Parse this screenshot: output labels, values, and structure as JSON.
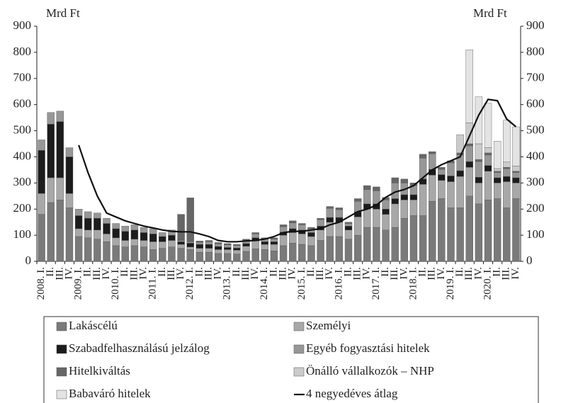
{
  "chart_data": {
    "type": "bar",
    "stacked": true,
    "y_unit": "Mrd Ft",
    "y2_unit": "Mrd Ft",
    "categories": [
      "2008. I.",
      "II.",
      "III.",
      "IV.",
      "2009. I.",
      "II.",
      "III.",
      "IV.",
      "2010. I.",
      "II.",
      "III.",
      "IV.",
      "2011. I.",
      "II.",
      "III.",
      "IV.",
      "2012. I.",
      "II.",
      "III.",
      "IV.",
      "2013. I.",
      "II.",
      "III.",
      "IV.",
      "2014. I.",
      "II.",
      "III.",
      "IV.",
      "2015. I.",
      "II.",
      "III.",
      "IV.",
      "2016. I.",
      "II.",
      "III.",
      "IV.",
      "2017. I.",
      "II.",
      "III.",
      "IV.",
      "2018. I.",
      "II.",
      "III.",
      "IV.",
      "2019. I.",
      "II.",
      "III.",
      "IV.",
      "2020. I.",
      "II.",
      "III.",
      "IV."
    ],
    "ylim": [
      0,
      900
    ],
    "yticks": [
      0,
      100,
      200,
      300,
      400,
      500,
      600,
      700,
      800,
      900
    ],
    "y2lim": [
      0,
      900
    ],
    "y2ticks": [
      0,
      100,
      200,
      300,
      400,
      500,
      600,
      700,
      800,
      900
    ],
    "series": [
      {
        "name": "Lakáscélú",
        "color": "#7a7a7a",
        "values": [
          180,
          225,
          235,
          205,
          95,
          90,
          85,
          75,
          60,
          55,
          60,
          55,
          45,
          50,
          55,
          50,
          45,
          35,
          35,
          30,
          30,
          28,
          38,
          48,
          45,
          40,
          60,
          70,
          65,
          60,
          80,
          95,
          95,
          85,
          100,
          130,
          130,
          120,
          130,
          165,
          175,
          175,
          230,
          240,
          205,
          205,
          250,
          220,
          235,
          240,
          205,
          240
        ]
      },
      {
        "name": "Személyi",
        "color": "#a8a8a8",
        "values": [
          80,
          95,
          85,
          55,
          30,
          30,
          35,
          30,
          30,
          25,
          25,
          25,
          30,
          25,
          25,
          15,
          10,
          15,
          15,
          15,
          15,
          15,
          20,
          30,
          20,
          25,
          40,
          40,
          40,
          35,
          40,
          55,
          55,
          35,
          70,
          70,
          70,
          60,
          90,
          70,
          60,
          120,
          100,
          70,
          100,
          120,
          110,
          80,
          110,
          60,
          100,
          60
        ]
      },
      {
        "name": "Szabadfelhasználású jelzálog",
        "color": "#1c1c1c",
        "values": [
          165,
          205,
          215,
          140,
          50,
          45,
          45,
          40,
          35,
          35,
          35,
          30,
          30,
          20,
          20,
          10,
          15,
          15,
          15,
          12,
          8,
          8,
          10,
          12,
          10,
          10,
          12,
          15,
          15,
          15,
          15,
          18,
          18,
          15,
          20,
          20,
          20,
          20,
          20,
          20,
          20,
          20,
          22,
          22,
          22,
          22,
          22,
          22,
          22,
          20,
          20,
          20
        ]
      },
      {
        "name": "Egyéb fogyasztási hitelek",
        "color": "#979797",
        "values": [
          40,
          45,
          40,
          35,
          25,
          25,
          20,
          20,
          20,
          20,
          20,
          20,
          20,
          15,
          20,
          5,
          5,
          8,
          10,
          10,
          10,
          10,
          12,
          15,
          10,
          10,
          20,
          22,
          20,
          15,
          25,
          35,
          30,
          10,
          40,
          55,
          50,
          35,
          60,
          45,
          35,
          80,
          60,
          20,
          50,
          60,
          60,
          60,
          40,
          20,
          30,
          20
        ]
      },
      {
        "name": "Hitelkiváltás",
        "color": "#666666",
        "values": [
          0,
          0,
          0,
          0,
          0,
          0,
          0,
          0,
          0,
          0,
          0,
          0,
          0,
          0,
          0,
          100,
          168,
          5,
          5,
          5,
          5,
          4,
          5,
          5,
          5,
          5,
          8,
          8,
          5,
          5,
          5,
          7,
          7,
          5,
          10,
          15,
          15,
          10,
          20,
          15,
          10,
          15,
          8,
          8,
          8,
          8,
          8,
          8,
          8,
          5,
          5,
          5
        ]
      },
      {
        "name": "Önálló vállalkozók – NHP",
        "color": "#cbcbcb",
        "values": [
          0,
          0,
          0,
          0,
          0,
          0,
          0,
          0,
          0,
          0,
          0,
          0,
          0,
          0,
          0,
          0,
          0,
          0,
          0,
          0,
          0,
          0,
          0,
          0,
          0,
          0,
          0,
          0,
          0,
          0,
          0,
          0,
          0,
          0,
          0,
          0,
          0,
          0,
          0,
          0,
          0,
          0,
          0,
          0,
          0,
          70,
          80,
          60,
          20,
          10,
          20,
          20
        ]
      },
      {
        "name": "Babaváró hitelek",
        "color": "#e3e3e3",
        "values": [
          0,
          0,
          0,
          0,
          0,
          0,
          0,
          0,
          0,
          0,
          0,
          0,
          0,
          0,
          0,
          0,
          0,
          0,
          0,
          0,
          0,
          0,
          0,
          0,
          0,
          0,
          0,
          0,
          0,
          0,
          0,
          0,
          0,
          0,
          0,
          0,
          0,
          0,
          0,
          0,
          0,
          0,
          0,
          0,
          0,
          0,
          280,
          180,
          170,
          105,
          160,
          150
        ]
      }
    ],
    "line": {
      "name": "4 negyedéves átlag",
      "color": "#111111",
      "values": [
        null,
        null,
        null,
        null,
        445,
        340,
        250,
        185,
        170,
        155,
        145,
        135,
        128,
        120,
        115,
        113,
        113,
        105,
        95,
        80,
        75,
        75,
        78,
        80,
        85,
        95,
        110,
        115,
        115,
        120,
        125,
        140,
        150,
        170,
        190,
        200,
        215,
        245,
        265,
        275,
        290,
        320,
        350,
        370,
        385,
        400,
        480,
        560,
        620,
        615,
        545,
        515
      ]
    }
  }
}
